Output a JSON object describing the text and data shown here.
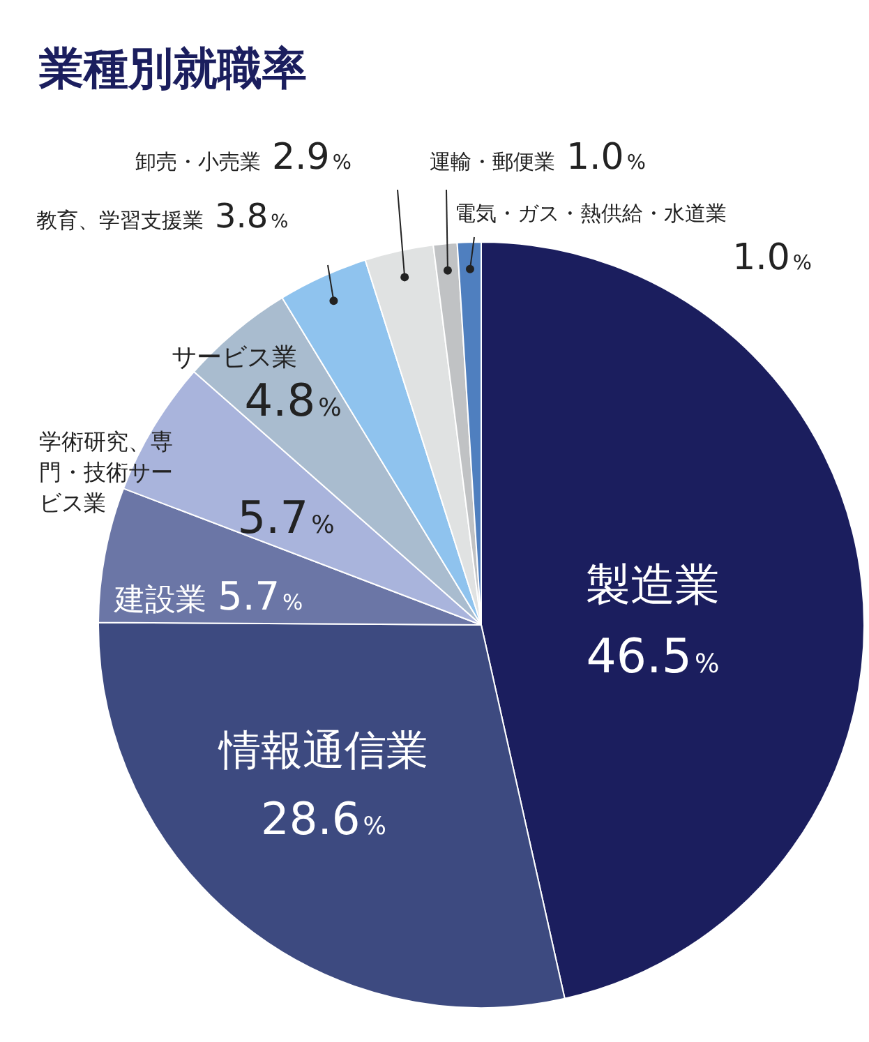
{
  "chart_data": {
    "type": "pie",
    "title": "業種別就職率",
    "categories": [
      "製造業",
      "情報通信業",
      "建設業",
      "学術研究、専門・技術サービス業",
      "サービス業",
      "教育、学習支援業",
      "卸売・小売業",
      "運輸・郵便業",
      "電気・ガス・熱供給・水道業"
    ],
    "values": [
      46.5,
      28.6,
      5.7,
      5.7,
      4.8,
      3.8,
      2.9,
      1.0,
      1.0
    ],
    "value_labels": [
      "46.5%",
      "28.6%",
      "5.7%",
      "5.7%",
      "4.8%",
      "3.8%",
      "2.9%",
      "1.0%",
      "1.0%"
    ],
    "colors": [
      "#1b1e5e",
      "#3d4a80",
      "#6b76a6",
      "#a9b4dc",
      "#a9bccf",
      "#8fc3ee",
      "#e0e2e2",
      "#c0c2c4",
      "#4f7fbf"
    ]
  }
}
